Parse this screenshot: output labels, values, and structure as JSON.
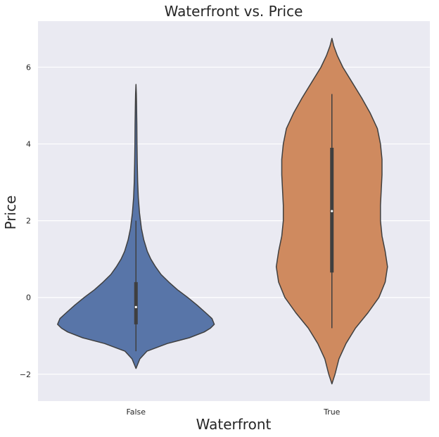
{
  "chart_data": {
    "type": "violin",
    "title": "Waterfront vs. Price",
    "xlabel": "Waterfront",
    "ylabel": "Price",
    "categories": [
      "False",
      "True"
    ],
    "ylim": [
      -2.7,
      7.2
    ],
    "yticks": [
      -2,
      0,
      2,
      4,
      6
    ],
    "grid": true,
    "colors": {
      "background": "#eaeaf2",
      "False": "#5875a8",
      "True": "#cf8a5f",
      "outline": "#3f3f3f"
    },
    "series": [
      {
        "category": "False",
        "min": -1.85,
        "max": 5.55,
        "q1": -0.7,
        "median": -0.25,
        "q3": 0.4,
        "whisker_low": -1.4,
        "whisker_high": 2.0,
        "density": [
          [
            -1.85,
            0.0
          ],
          [
            -1.6,
            0.05
          ],
          [
            -1.4,
            0.14
          ],
          [
            -1.2,
            0.4
          ],
          [
            -1.05,
            0.68
          ],
          [
            -0.9,
            0.87
          ],
          [
            -0.8,
            0.95
          ],
          [
            -0.7,
            1.0
          ],
          [
            -0.55,
            0.97
          ],
          [
            -0.4,
            0.89
          ],
          [
            -0.2,
            0.78
          ],
          [
            0.0,
            0.66
          ],
          [
            0.2,
            0.53
          ],
          [
            0.4,
            0.42
          ],
          [
            0.6,
            0.32
          ],
          [
            0.8,
            0.25
          ],
          [
            1.0,
            0.19
          ],
          [
            1.2,
            0.145
          ],
          [
            1.5,
            0.1
          ],
          [
            1.8,
            0.07
          ],
          [
            2.2,
            0.045
          ],
          [
            2.6,
            0.03
          ],
          [
            3.0,
            0.022
          ],
          [
            3.5,
            0.017
          ],
          [
            4.0,
            0.013
          ],
          [
            4.5,
            0.011
          ],
          [
            5.0,
            0.008
          ],
          [
            5.3,
            0.005
          ],
          [
            5.55,
            0.0
          ]
        ]
      },
      {
        "category": "True",
        "min": -2.25,
        "max": 6.75,
        "q1": 0.65,
        "median": 2.25,
        "q3": 3.9,
        "whisker_low": -0.8,
        "whisker_high": 5.3,
        "density": [
          [
            -2.25,
            0.0
          ],
          [
            -2.0,
            0.04
          ],
          [
            -1.6,
            0.09
          ],
          [
            -1.2,
            0.18
          ],
          [
            -0.8,
            0.3
          ],
          [
            -0.4,
            0.46
          ],
          [
            0.0,
            0.6
          ],
          [
            0.4,
            0.68
          ],
          [
            0.8,
            0.71
          ],
          [
            1.2,
            0.68
          ],
          [
            1.6,
            0.64
          ],
          [
            2.0,
            0.62
          ],
          [
            2.4,
            0.62
          ],
          [
            2.8,
            0.63
          ],
          [
            3.2,
            0.64
          ],
          [
            3.6,
            0.64
          ],
          [
            4.0,
            0.62
          ],
          [
            4.4,
            0.58
          ],
          [
            4.8,
            0.49
          ],
          [
            5.2,
            0.38
          ],
          [
            5.6,
            0.26
          ],
          [
            6.0,
            0.14
          ],
          [
            6.3,
            0.07
          ],
          [
            6.55,
            0.025
          ],
          [
            6.75,
            0.0
          ]
        ]
      }
    ]
  }
}
